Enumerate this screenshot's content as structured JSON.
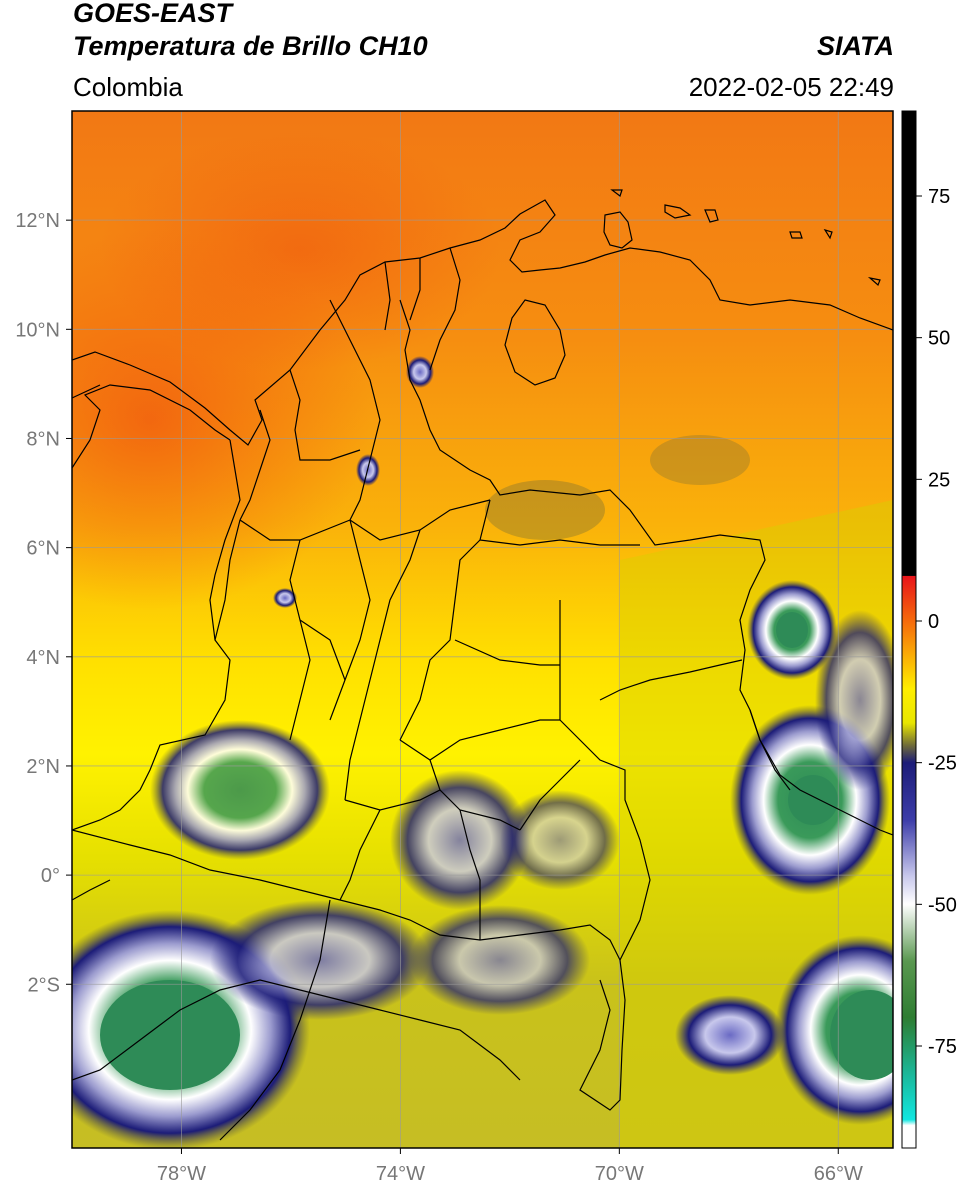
{
  "header": {
    "satellite": "GOES-EAST",
    "product": "Temperatura de Brillo CH10",
    "source": "SIATA",
    "region": "Colombia",
    "timestamp": "2022-02-05 22:49"
  },
  "map": {
    "lon_range": [
      -80,
      -65
    ],
    "lat_range": [
      -5,
      14
    ],
    "lon_ticks": [
      {
        "value": -78,
        "label": "78°W"
      },
      {
        "value": -74,
        "label": "74°W"
      },
      {
        "value": -70,
        "label": "70°W"
      },
      {
        "value": -66,
        "label": "66°W"
      }
    ],
    "lat_ticks": [
      {
        "value": 12,
        "label": "12°N"
      },
      {
        "value": 10,
        "label": "10°N"
      },
      {
        "value": 8,
        "label": "8°N"
      },
      {
        "value": 6,
        "label": "6°N"
      },
      {
        "value": 4,
        "label": "4°N"
      },
      {
        "value": 2,
        "label": "2°N"
      },
      {
        "value": 0,
        "label": "0°"
      },
      {
        "value": -2,
        "label": "2°S"
      }
    ],
    "gridlines": true
  },
  "colorbar": {
    "range": [
      -93,
      90
    ],
    "ticks": [
      {
        "value": 75,
        "label": "75"
      },
      {
        "value": 50,
        "label": "50"
      },
      {
        "value": 25,
        "label": "25"
      },
      {
        "value": 0,
        "label": "0"
      },
      {
        "value": -25,
        "label": "-25"
      },
      {
        "value": -50,
        "label": "-50"
      },
      {
        "value": -75,
        "label": "-75"
      }
    ],
    "stops": [
      {
        "value": 90,
        "color": "#000000"
      },
      {
        "value": 8,
        "color": "#000000"
      },
      {
        "value": 7.9,
        "color": "#e8141a"
      },
      {
        "value": 0,
        "color": "#f56a0c"
      },
      {
        "value": -12,
        "color": "#ffee00"
      },
      {
        "value": -18,
        "color": "#e8e600"
      },
      {
        "value": -22,
        "color": "#6e6a3a"
      },
      {
        "value": -25,
        "color": "#1c1c78"
      },
      {
        "value": -35,
        "color": "#3c3ca8"
      },
      {
        "value": -45,
        "color": "#c8c8ec"
      },
      {
        "value": -50,
        "color": "#ffffff"
      },
      {
        "value": -60,
        "color": "#5a9850"
      },
      {
        "value": -70,
        "color": "#2e7d32"
      },
      {
        "value": -80,
        "color": "#1bb89a"
      },
      {
        "value": -88,
        "color": "#11e6e0"
      },
      {
        "value": -89,
        "color": "#ffffff"
      },
      {
        "value": -93,
        "color": "#ffffff"
      }
    ]
  }
}
